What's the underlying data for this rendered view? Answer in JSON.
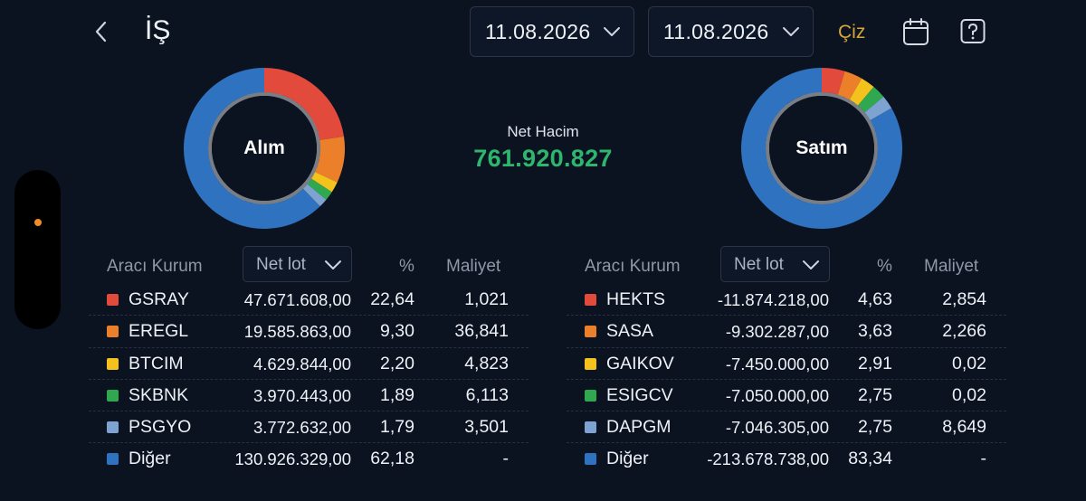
{
  "header": {
    "title": "İŞ",
    "date_start": "11.08.2026",
    "date_end": "11.08.2026",
    "draw_label": "Çiz"
  },
  "colors": {
    "background": "#0b1321",
    "net_positive": "#2fb66e",
    "accent": "#d4a63b",
    "series": [
      "#e24a3b",
      "#ec7f2a",
      "#f3c21c",
      "#2fa84f",
      "#7fa3d1",
      "#2f73c0"
    ]
  },
  "summary": {
    "net_label": "Net Hacim",
    "net_value": "761.920.827"
  },
  "buy": {
    "donut_label": "Alım",
    "col_broker": "Aracı Kurum",
    "col_netlot": "Net lot",
    "col_pct": "%",
    "col_cost": "Maliyet",
    "rows": [
      {
        "name": "GSRAY",
        "lot": "47.671.608,00",
        "pct": "22,64",
        "cost": "1,021"
      },
      {
        "name": "EREGL",
        "lot": "19.585.863,00",
        "pct": "9,30",
        "cost": "36,841"
      },
      {
        "name": "BTCIM",
        "lot": "4.629.844,00",
        "pct": "2,20",
        "cost": "4,823"
      },
      {
        "name": "SKBNK",
        "lot": "3.970.443,00",
        "pct": "1,89",
        "cost": "6,113"
      },
      {
        "name": "PSGYO",
        "lot": "3.772.632,00",
        "pct": "1,79",
        "cost": "3,501"
      },
      {
        "name": "Diğer",
        "lot": "130.926.329,00",
        "pct": "62,18",
        "cost": "-"
      }
    ],
    "shares": [
      22.64,
      9.3,
      2.2,
      1.89,
      1.79,
      62.18
    ]
  },
  "sell": {
    "donut_label": "Satım",
    "col_broker": "Aracı Kurum",
    "col_netlot": "Net lot",
    "col_pct": "%",
    "col_cost": "Maliyet",
    "rows": [
      {
        "name": "HEKTS",
        "lot": "-11.874.218,00",
        "pct": "4,63",
        "cost": "2,854"
      },
      {
        "name": "SASA",
        "lot": "-9.302.287,00",
        "pct": "3,63",
        "cost": "2,266"
      },
      {
        "name": "GAIKOV",
        "lot": "-7.450.000,00",
        "pct": "2,91",
        "cost": "0,02"
      },
      {
        "name": "ESIGCV",
        "lot": "-7.050.000,00",
        "pct": "2,75",
        "cost": "0,02"
      },
      {
        "name": "DAPGM",
        "lot": "-7.046.305,00",
        "pct": "2,75",
        "cost": "8,649"
      },
      {
        "name": "Diğer",
        "lot": "-213.678.738,00",
        "pct": "83,34",
        "cost": "-"
      }
    ],
    "shares": [
      4.63,
      3.63,
      2.91,
      2.75,
      2.75,
      83.34
    ]
  }
}
